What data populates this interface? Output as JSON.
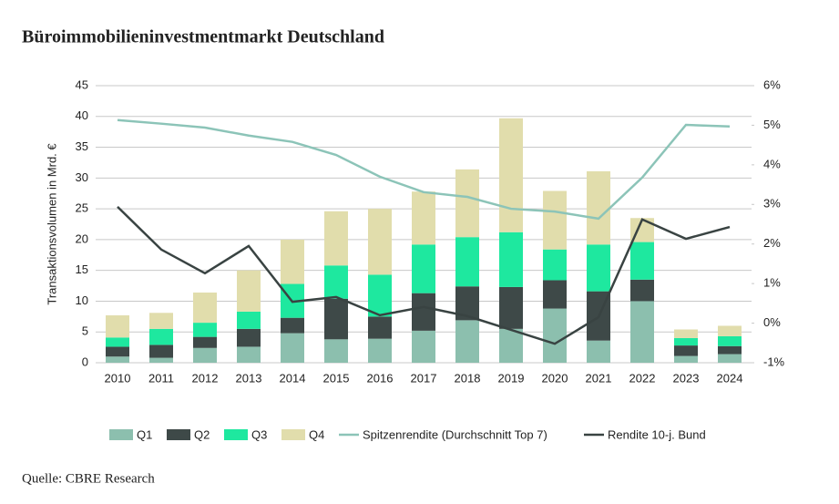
{
  "title": "Büroimmobilieninvestmentmarkt Deutschland",
  "source": "Quelle: CBRE Research",
  "chart_data": {
    "type": "bar",
    "stacked": true,
    "ylabel": "Transaktionsvolumen in Mrd. €",
    "categories": [
      "2010",
      "2011",
      "2012",
      "2013",
      "2014",
      "2015",
      "2016",
      "2017",
      "2018",
      "2019",
      "2020",
      "2021",
      "2022",
      "2023",
      "2024"
    ],
    "ylim": [
      0,
      45
    ],
    "yticks": [
      0,
      5,
      10,
      15,
      20,
      25,
      30,
      35,
      40,
      45
    ],
    "y2lim": [
      -1,
      6
    ],
    "y2ticks": [
      {
        "value": -1,
        "label": "-1%"
      },
      {
        "value": 0,
        "label": "0%"
      },
      {
        "value": 1,
        "label": "1%"
      },
      {
        "value": 2,
        "label": "2%"
      },
      {
        "value": 3,
        "label": "3%"
      },
      {
        "value": 4,
        "label": "4%"
      },
      {
        "value": 5,
        "label": "5%"
      },
      {
        "value": 6,
        "label": "6%"
      }
    ],
    "grid": true,
    "series": [
      {
        "name": "Q1",
        "color": "#8cbfae",
        "values": [
          1.0,
          0.8,
          2.4,
          2.6,
          4.8,
          3.8,
          3.9,
          5.2,
          6.9,
          5.5,
          8.8,
          3.6,
          10.0,
          1.1,
          1.4
        ]
      },
      {
        "name": "Q2",
        "color": "#3e4948",
        "values": [
          1.6,
          2.1,
          1.8,
          2.9,
          2.5,
          6.6,
          3.6,
          6.1,
          5.5,
          6.8,
          4.6,
          8.0,
          3.5,
          1.7,
          1.3
        ]
      },
      {
        "name": "Q3",
        "color": "#1ee89f",
        "values": [
          1.5,
          2.6,
          2.3,
          2.8,
          5.5,
          5.4,
          6.8,
          7.9,
          8.0,
          8.9,
          5.0,
          7.6,
          6.1,
          1.2,
          1.6
        ]
      },
      {
        "name": "Q4",
        "color": "#e1ddac",
        "values": [
          3.6,
          2.6,
          4.9,
          6.7,
          7.2,
          8.8,
          10.7,
          8.6,
          11.0,
          18.5,
          9.5,
          11.9,
          3.9,
          1.4,
          1.7
        ]
      },
      {
        "name": "Spitzenrendite (Durchschnitt Top 7)",
        "type": "line",
        "axis": "y2",
        "color": "#8cc4b8",
        "values": [
          5.13,
          5.04,
          4.94,
          4.74,
          4.58,
          4.25,
          3.7,
          3.31,
          3.19,
          2.89,
          2.82,
          2.64,
          3.68,
          5.01,
          4.97
        ]
      },
      {
        "name": "Rendite 10-j. Bund",
        "type": "line",
        "axis": "y2",
        "color": "#394342",
        "values": [
          2.94,
          1.86,
          1.26,
          1.95,
          0.54,
          0.66,
          0.2,
          0.41,
          0.18,
          -0.17,
          -0.52,
          0.15,
          2.62,
          2.13,
          2.43
        ]
      }
    ]
  }
}
